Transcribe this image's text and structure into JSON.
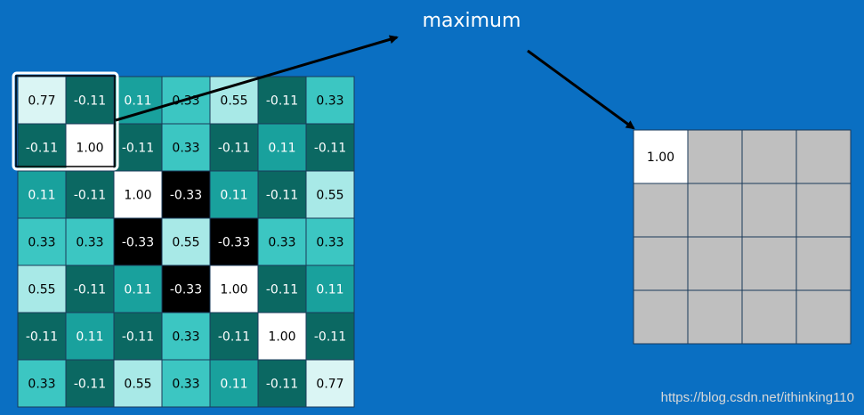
{
  "label": "maximum",
  "watermark": "https://blog.csdn.net/ithinking110",
  "input": {
    "rows": [
      [
        "0.77",
        "-0.11",
        "0.11",
        "0.33",
        "0.55",
        "-0.11",
        "0.33"
      ],
      [
        "-0.11",
        "1.00",
        "-0.11",
        "0.33",
        "-0.11",
        "0.11",
        "-0.11"
      ],
      [
        "0.11",
        "-0.11",
        "1.00",
        "-0.33",
        "0.11",
        "-0.11",
        "0.55"
      ],
      [
        "0.33",
        "0.33",
        "-0.33",
        "0.55",
        "-0.33",
        "0.33",
        "0.33"
      ],
      [
        "0.55",
        "-0.11",
        "0.11",
        "-0.33",
        "1.00",
        "-0.11",
        "0.11"
      ],
      [
        "-0.11",
        "0.11",
        "-0.11",
        "0.33",
        "-0.11",
        "1.00",
        "-0.11"
      ],
      [
        "0.33",
        "-0.11",
        "0.55",
        "0.33",
        "0.11",
        "-0.11",
        "0.77"
      ]
    ],
    "colors": [
      [
        "#daf5f4",
        "#0b6862",
        "#19a19d",
        "#3cc6c2",
        "#a8e9e7",
        "#0b6862",
        "#3cc6c2"
      ],
      [
        "#0b6862",
        "#ffffff",
        "#0b6862",
        "#3cc6c2",
        "#0b6862",
        "#19a19d",
        "#0b6862"
      ],
      [
        "#19a19d",
        "#0b6862",
        "#ffffff",
        "#000000",
        "#19a19d",
        "#0b6862",
        "#a8e9e7"
      ],
      [
        "#3cc6c2",
        "#3cc6c2",
        "#000000",
        "#a8e9e7",
        "#000000",
        "#3cc6c2",
        "#3cc6c2"
      ],
      [
        "#a8e9e7",
        "#0b6862",
        "#19a19d",
        "#000000",
        "#ffffff",
        "#0b6862",
        "#19a19d"
      ],
      [
        "#0b6862",
        "#19a19d",
        "#0b6862",
        "#3cc6c2",
        "#0b6862",
        "#ffffff",
        "#0b6862"
      ],
      [
        "#3cc6c2",
        "#0b6862",
        "#a8e9e7",
        "#3cc6c2",
        "#19a19d",
        "#0b6862",
        "#daf5f4"
      ]
    ]
  },
  "output": {
    "rows": [
      [
        "1.00",
        null,
        null,
        null
      ],
      [
        null,
        null,
        null,
        null
      ],
      [
        null,
        null,
        null,
        null
      ],
      [
        null,
        null,
        null,
        null
      ]
    ]
  }
}
